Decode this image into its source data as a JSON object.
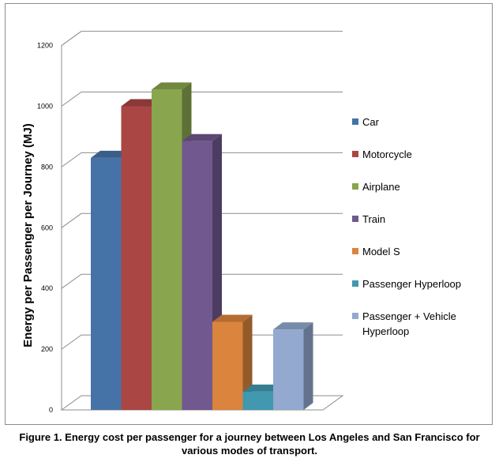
{
  "chart_data": {
    "type": "bar",
    "style": "3d-column",
    "title": "",
    "xlabel": "",
    "ylabel": "Energy per Passenger per Journey (MJ)",
    "ylim": [
      0,
      1200
    ],
    "yticks": [
      0,
      200,
      400,
      600,
      800,
      1000,
      1200
    ],
    "grid": true,
    "legend_position": "right",
    "series": [
      {
        "name": "Car",
        "value": 830,
        "color": "#4573a7"
      },
      {
        "name": "Motorcycle",
        "value": 1000,
        "color": "#aa4644"
      },
      {
        "name": "Airplane",
        "value": 1055,
        "color": "#89a54e"
      },
      {
        "name": "Train",
        "value": 885,
        "color": "#71588f"
      },
      {
        "name": "Model S",
        "value": 290,
        "color": "#db843d"
      },
      {
        "name": "Passenger Hyperloop",
        "value": 60,
        "color": "#4198af"
      },
      {
        "name": "Passenger + Vehicle Hyperloop",
        "value": 265,
        "color": "#93a9cf"
      }
    ]
  },
  "caption": {
    "line1": "Figure 1. Energy cost per passenger for a journey between Los Angeles and San Francisco for",
    "line2": "various modes of transport."
  }
}
